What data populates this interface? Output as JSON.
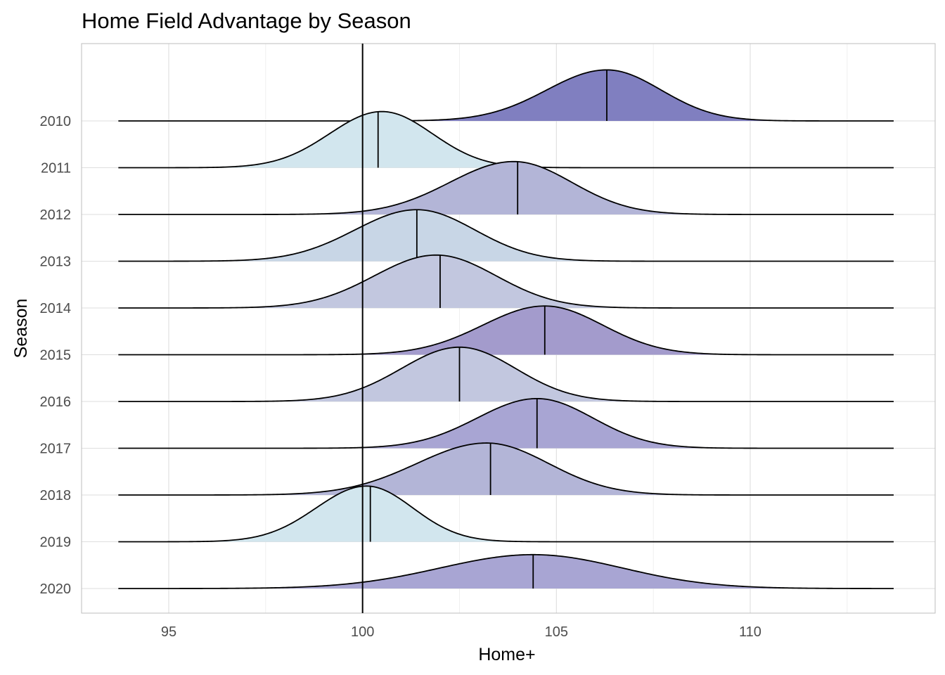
{
  "chart_data": {
    "type": "area",
    "subtype": "ridgeline density",
    "title": "Home Field Advantage by Season",
    "xlabel": "Home+",
    "ylabel": "Season",
    "xlim": [
      92.2,
      114.9
    ],
    "xticks": [
      95,
      100,
      105,
      110
    ],
    "x_range_density": [
      93.7,
      113.7
    ],
    "reference_line_x": 100,
    "grid": true,
    "legend": "none",
    "colors": {
      "baseline": "#000000",
      "grid": "#dedede",
      "panel_border": "#bdbdbd",
      "light_blue": "#d2e6ee",
      "light_steel": "#c8d6e6",
      "lavender_light": "#c2c7df",
      "lavender_mid": "#b3b5d7",
      "purple_mid": "#a8a5d3",
      "purple": "#a39bcc",
      "dark_purple": "#807fc0"
    },
    "series": [
      {
        "season": "2010",
        "median": 106.3,
        "peak": 106.3,
        "sd_left": 1.55,
        "sd_right": 1.4,
        "height": 1.1,
        "fill": "#807fc0"
      },
      {
        "season": "2011",
        "median": 100.4,
        "peak": 100.5,
        "sd_left": 1.35,
        "sd_right": 1.3,
        "height": 1.21,
        "fill": "#d2e6ee"
      },
      {
        "season": "2012",
        "median": 104.0,
        "peak": 103.9,
        "sd_left": 1.65,
        "sd_right": 1.5,
        "height": 1.14,
        "fill": "#b3b5d7"
      },
      {
        "season": "2013",
        "median": 101.4,
        "peak": 101.4,
        "sd_left": 1.6,
        "sd_right": 1.5,
        "height": 1.11,
        "fill": "#c8d6e6"
      },
      {
        "season": "2014",
        "median": 102.0,
        "peak": 101.9,
        "sd_left": 1.6,
        "sd_right": 1.55,
        "height": 1.14,
        "fill": "#c2c7df"
      },
      {
        "season": "2015",
        "median": 104.7,
        "peak": 104.7,
        "sd_left": 1.6,
        "sd_right": 1.5,
        "height": 1.05,
        "fill": "#a39bcc"
      },
      {
        "season": "2016",
        "median": 102.5,
        "peak": 102.5,
        "sd_left": 1.5,
        "sd_right": 1.45,
        "height": 1.17,
        "fill": "#c2c7df"
      },
      {
        "season": "2017",
        "median": 104.5,
        "peak": 104.5,
        "sd_left": 1.55,
        "sd_right": 1.45,
        "height": 1.07,
        "fill": "#a8a5d3"
      },
      {
        "season": "2018",
        "median": 103.3,
        "peak": 103.2,
        "sd_left": 1.8,
        "sd_right": 1.6,
        "height": 1.12,
        "fill": "#b3b5d7"
      },
      {
        "season": "2019",
        "median": 100.2,
        "peak": 100.1,
        "sd_left": 1.3,
        "sd_right": 1.2,
        "height": 1.2,
        "fill": "#d2e6ee"
      },
      {
        "season": "2020",
        "median": 104.4,
        "peak": 104.4,
        "sd_left": 2.4,
        "sd_right": 2.3,
        "height": 0.73,
        "fill": "#a8a5d3"
      }
    ]
  }
}
